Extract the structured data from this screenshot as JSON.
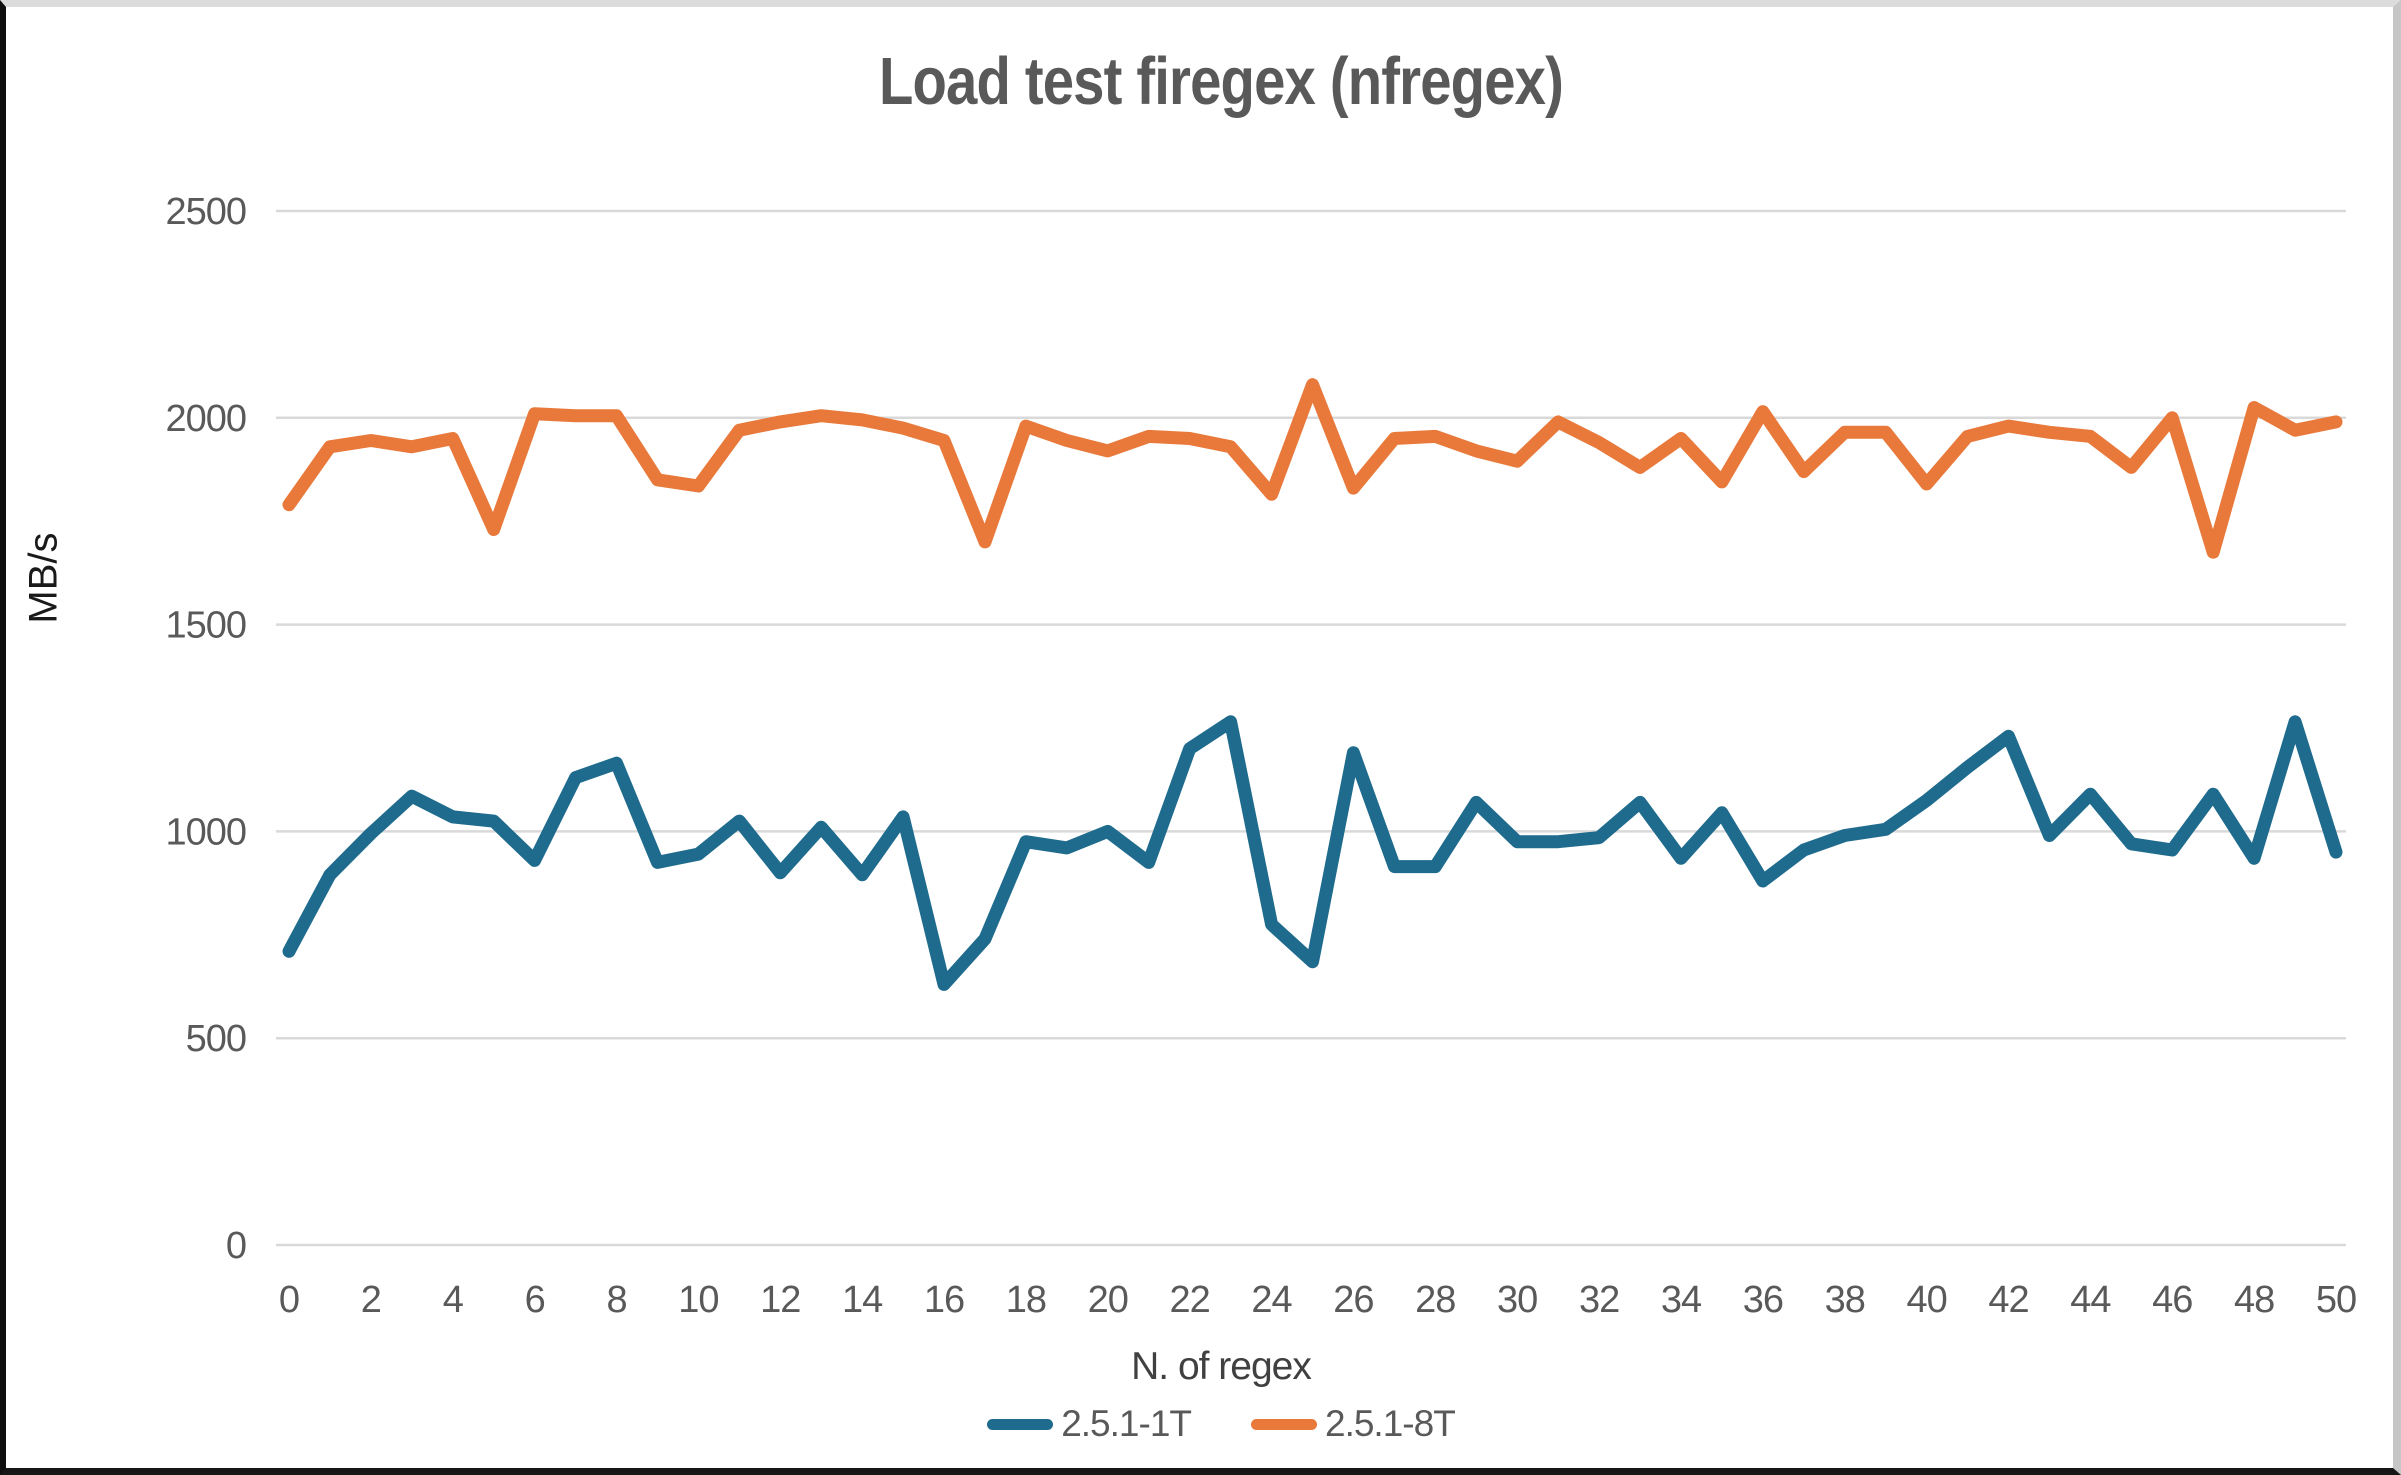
{
  "window": {
    "background": "#ffffff",
    "border_colors": {
      "top": "#dcdcdc",
      "right": "#c6c6c6",
      "bottom": "#161616",
      "left": "#0f0f0f"
    }
  },
  "chart": {
    "title": "Load test firegex (nfregex)",
    "title_color": "#595959",
    "gridline_color": "#d9d9d9",
    "tick_label_color": "#595959",
    "y_axis": {
      "label": "MB/s",
      "ticks": [
        0,
        500,
        1000,
        1500,
        2000,
        2500
      ]
    },
    "x_axis": {
      "label": "N. of regex",
      "ticks": [
        0,
        2,
        4,
        6,
        8,
        10,
        12,
        14,
        16,
        18,
        20,
        22,
        24,
        26,
        28,
        30,
        32,
        34,
        36,
        38,
        40,
        42,
        44,
        46,
        48,
        50
      ]
    },
    "legend": {
      "items": [
        {
          "label": "2.5.1-1T",
          "color": "#1f6b8d"
        },
        {
          "label": "2.5.1-8T",
          "color": "#e8793a"
        }
      ]
    }
  },
  "chart_data": {
    "type": "line",
    "title": "Load test firegex (nfregex)",
    "xlabel": "N. of regex",
    "ylabel": "MB/s",
    "x": [
      0,
      1,
      2,
      3,
      4,
      5,
      6,
      7,
      8,
      9,
      10,
      11,
      12,
      13,
      14,
      15,
      16,
      17,
      18,
      19,
      20,
      21,
      22,
      23,
      24,
      25,
      26,
      27,
      28,
      29,
      30,
      31,
      32,
      33,
      34,
      35,
      36,
      37,
      38,
      39,
      40,
      41,
      42,
      43,
      44,
      45,
      46,
      47,
      48,
      49,
      50
    ],
    "xlim": [
      0,
      50
    ],
    "ylim": [
      0,
      2500
    ],
    "grid": true,
    "legend_position": "bottom",
    "series": [
      {
        "name": "2.5.1-1T",
        "color": "#1f6b8d",
        "values": [
          710,
          895,
          995,
          1085,
          1035,
          1025,
          930,
          1130,
          1165,
          925,
          945,
          1025,
          900,
          1010,
          895,
          1035,
          630,
          740,
          975,
          960,
          1000,
          925,
          1200,
          1265,
          775,
          685,
          1190,
          915,
          915,
          1070,
          975,
          975,
          985,
          1070,
          935,
          1045,
          880,
          955,
          990,
          1005,
          1075,
          1155,
          1230,
          990,
          1090,
          970,
          955,
          1090,
          935,
          1265,
          950
        ]
      },
      {
        "name": "2.5.1-8T",
        "color": "#e8793a",
        "values": [
          1790,
          1930,
          1945,
          1930,
          1950,
          1730,
          2010,
          2005,
          2005,
          1850,
          1835,
          1970,
          1990,
          2005,
          1995,
          1975,
          1945,
          1700,
          1980,
          1945,
          1920,
          1955,
          1950,
          1930,
          1815,
          2080,
          1830,
          1950,
          1955,
          1920,
          1895,
          1990,
          1940,
          1880,
          1950,
          1845,
          2015,
          1870,
          1965,
          1965,
          1840,
          1955,
          1980,
          1965,
          1955,
          1880,
          2000,
          1675,
          2025,
          1970,
          1990
        ]
      }
    ]
  }
}
